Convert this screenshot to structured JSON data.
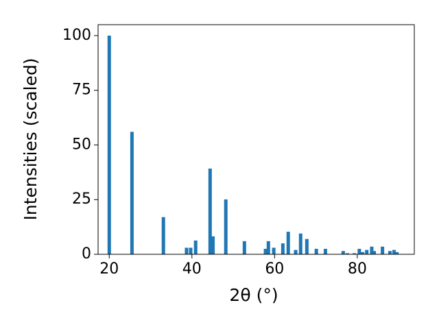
{
  "chart_data": {
    "type": "bar",
    "x_label": "2θ (°)",
    "y_label": "Intensities (scaled)",
    "x": [
      20.0,
      25.5,
      33.1,
      38.7,
      39.7,
      40.9,
      44.4,
      45.1,
      48.2,
      52.7,
      57.8,
      58.5,
      59.8,
      62.0,
      63.3,
      65.1,
      66.3,
      67.8,
      70.1,
      72.3,
      76.6,
      77.6,
      79.3,
      80.5,
      81.3,
      82.3,
      83.5,
      84.1,
      86.1,
      87.9,
      88.9,
      89.6
    ],
    "values": [
      100,
      56,
      17,
      3,
      3,
      6.3,
      39.2,
      8.2,
      25.1,
      6,
      2.5,
      6,
      3,
      5,
      10.3,
      2,
      9.5,
      7,
      2.5,
      2.5,
      1.5,
      0.5,
      0.5,
      2.5,
      1,
      2,
      3.5,
      1.5,
      3.5,
      1.5,
      2,
      1
    ],
    "color": "#1f77b4",
    "xlim": [
      17.3,
      93.8
    ],
    "xticks": [
      20,
      40,
      60,
      80
    ],
    "ylim": [
      0,
      105
    ],
    "yticks": [
      0,
      25,
      50,
      75,
      100
    ],
    "grid": false
  }
}
